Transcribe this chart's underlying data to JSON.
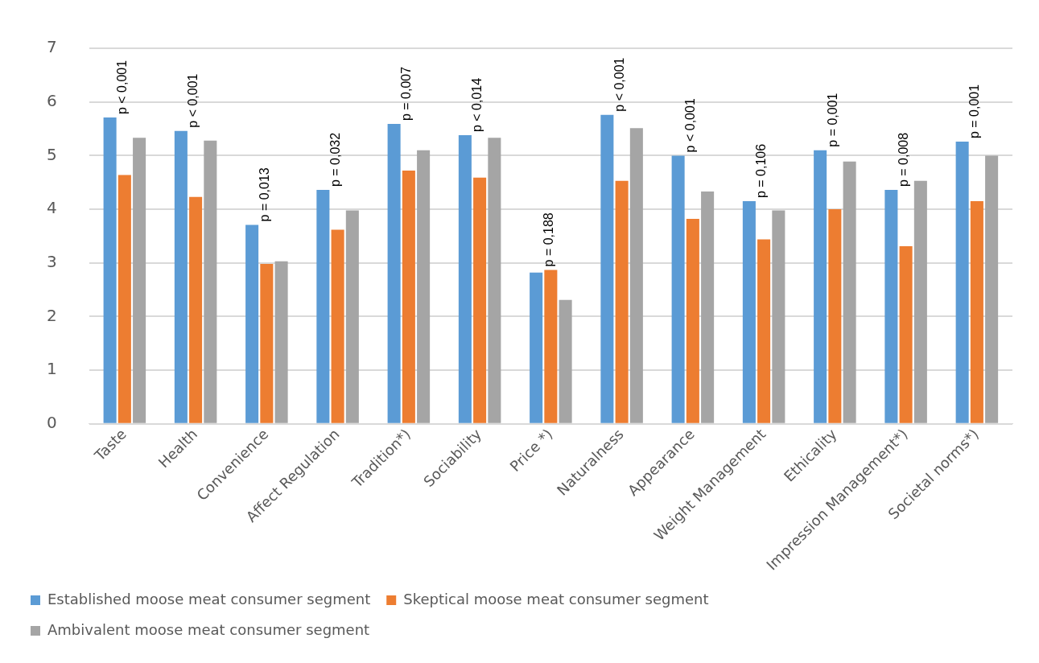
{
  "chart_data": {
    "type": "bar",
    "categories": [
      "Taste",
      "Health",
      "Convenience",
      "Affect Regulation",
      "Tradition*)",
      "Sociability",
      "Price *)",
      "Naturalness",
      "Appearance",
      "Weight Management",
      "Ethicality",
      "Impression Management*)",
      "Societal norms*)"
    ],
    "series": [
      {
        "name": "Established moose meat consumer segment",
        "color": "#5b9bd5",
        "values": [
          5.71,
          5.46,
          3.71,
          4.36,
          5.59,
          5.38,
          2.82,
          5.76,
          5.0,
          4.15,
          5.1,
          4.36,
          5.26
        ]
      },
      {
        "name": "Skeptical moose meat consumer segment",
        "color": "#ed7d31",
        "values": [
          4.64,
          4.23,
          2.98,
          3.62,
          4.72,
          4.59,
          2.87,
          4.53,
          3.82,
          3.44,
          4.0,
          3.31,
          4.15
        ]
      },
      {
        "name": "Ambivalent moose meat consumer segment",
        "color": "#a5a5a5",
        "values": [
          5.33,
          5.28,
          3.03,
          3.98,
          5.1,
          5.33,
          2.31,
          5.51,
          4.33,
          3.98,
          4.89,
          4.53,
          5.0
        ]
      }
    ],
    "ylim": [
      0,
      7
    ],
    "yticks": [
      0,
      1,
      2,
      3,
      4,
      5,
      6,
      7
    ],
    "grid": "y",
    "legend": "bottom",
    "annotations": [
      "p < 0,001",
      "p < 0,001",
      "p = 0,013",
      "p = 0,032",
      "p = 0,007",
      "p < 0,014",
      "p = 0,188",
      "p < 0,001",
      "p < 0,001",
      "p = 0,106",
      "p = 0,001",
      "p = 0,008",
      "p = 0,001"
    ]
  }
}
